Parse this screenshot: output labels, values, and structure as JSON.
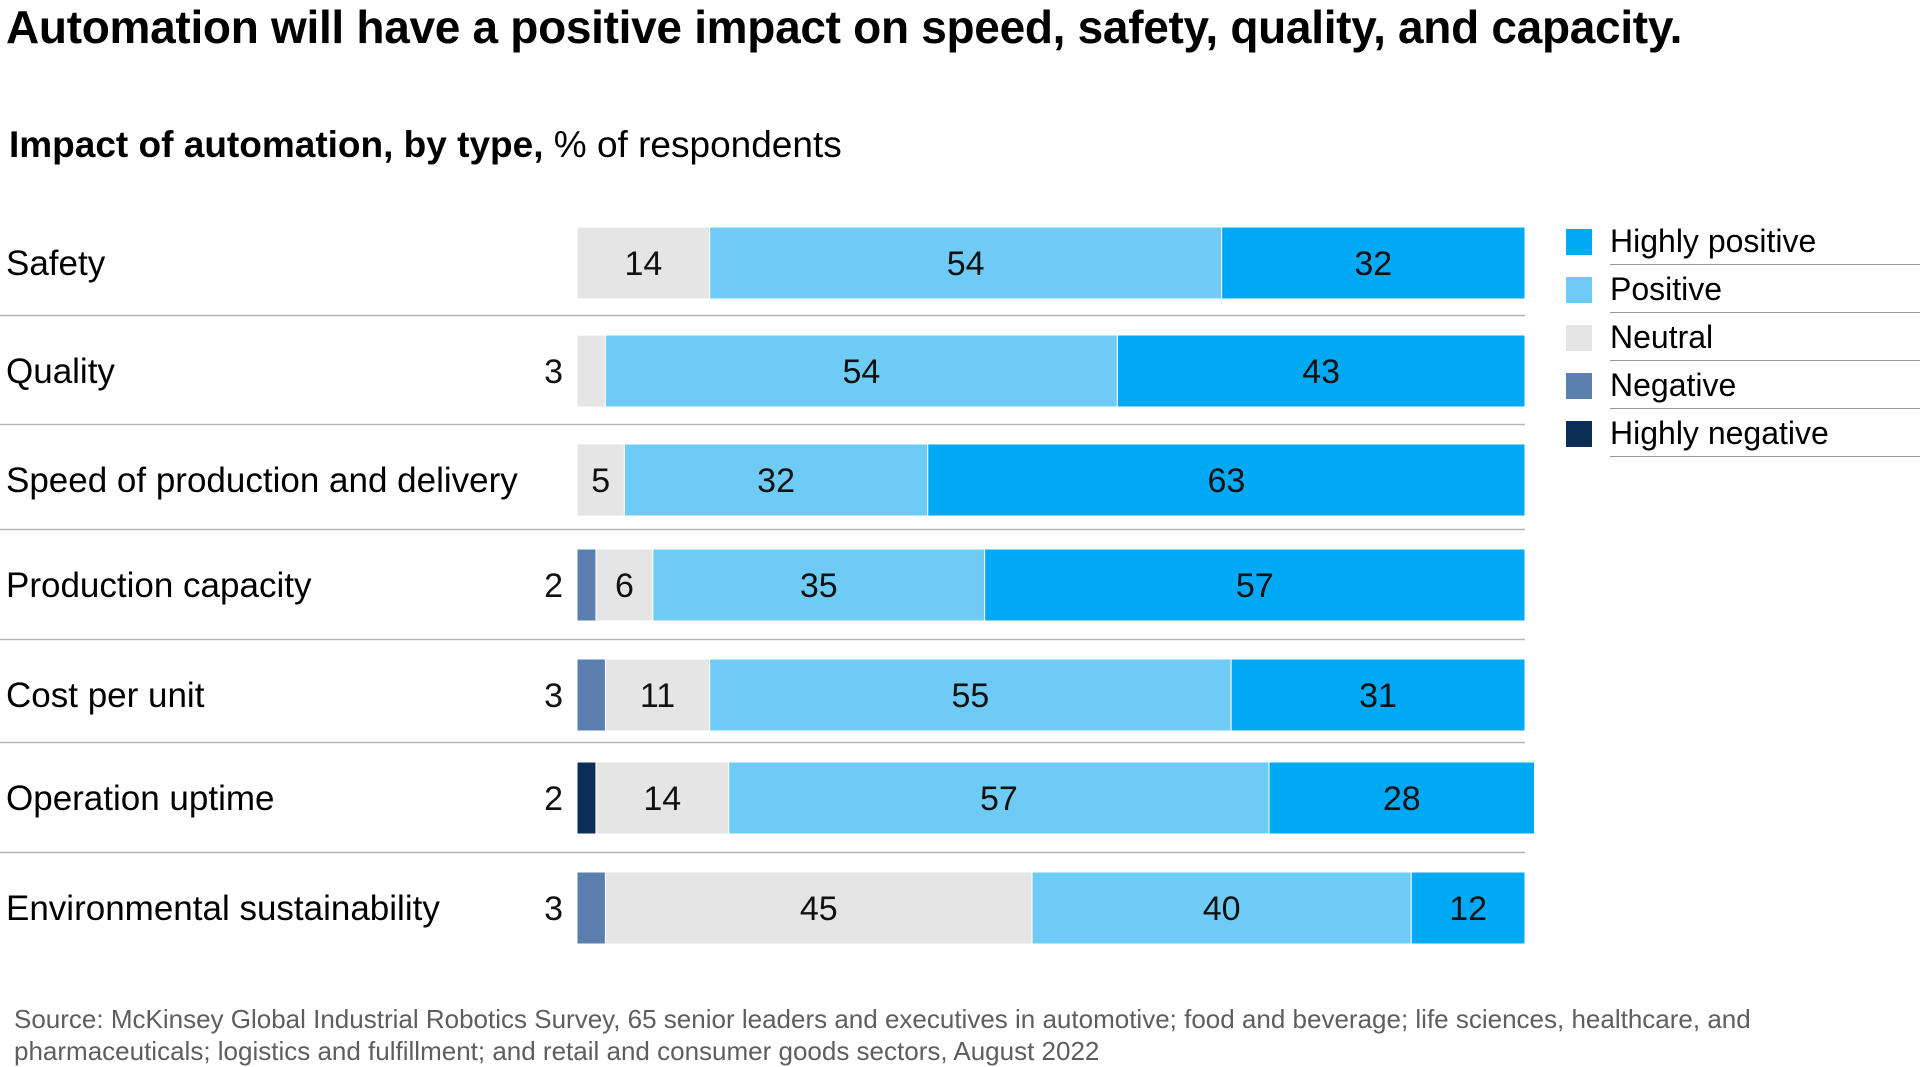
{
  "title": "Automation will have a positive impact on speed, safety, quality, and capacity.",
  "subtitle": {
    "bold": "Impact of automation, by type,",
    "regular": " % of respondents"
  },
  "legend": [
    {
      "key": "highly_positive",
      "label": "Highly positive",
      "color": "#00A9F4"
    },
    {
      "key": "positive",
      "label": "Positive",
      "color": "#6ECBF5"
    },
    {
      "key": "neutral",
      "label": "Neutral",
      "color": "#E5E5E5"
    },
    {
      "key": "negative",
      "label": "Negative",
      "color": "#5A7FAE"
    },
    {
      "key": "highly_negative",
      "label": "Highly negative",
      "color": "#0B2E57"
    }
  ],
  "chart_data": {
    "type": "bar",
    "orientation": "horizontal",
    "stacked": true,
    "title": "Automation will have a positive impact on speed, safety, quality, and capacity.",
    "subtitle": "Impact of automation, by type, % of respondents",
    "categories": [
      "Safety",
      "Quality",
      "Speed of production and delivery",
      "Production capacity",
      "Cost per unit",
      "Operation uptime",
      "Environmental sustainability"
    ],
    "series": [
      {
        "name": "Highly negative",
        "color": "#0B2E57",
        "values": [
          0,
          0,
          0,
          0,
          0,
          2,
          0
        ]
      },
      {
        "name": "Negative",
        "color": "#5A7FAE",
        "values": [
          0,
          0,
          0,
          2,
          3,
          0,
          3
        ]
      },
      {
        "name": "Neutral",
        "color": "#E5E5E5",
        "values": [
          14,
          3,
          5,
          6,
          11,
          14,
          45
        ]
      },
      {
        "name": "Positive",
        "color": "#6ECBF5",
        "values": [
          54,
          54,
          32,
          35,
          55,
          57,
          40
        ]
      },
      {
        "name": "Highly positive",
        "color": "#00A9F4",
        "values": [
          32,
          43,
          63,
          57,
          31,
          28,
          12
        ]
      }
    ],
    "outside_labels": [
      "",
      "3",
      "",
      "2",
      "3",
      "2",
      "3"
    ],
    "xlim": [
      0,
      100
    ],
    "grid": false,
    "legend_position": "right"
  },
  "source": "Source: McKinsey Global Industrial Robotics Survey, 65 senior leaders and executives in automotive; food and beverage; life sciences, healthcare, and pharmaceuticals; logistics and fulfillment; and retail and consumer goods sectors, August 2022"
}
